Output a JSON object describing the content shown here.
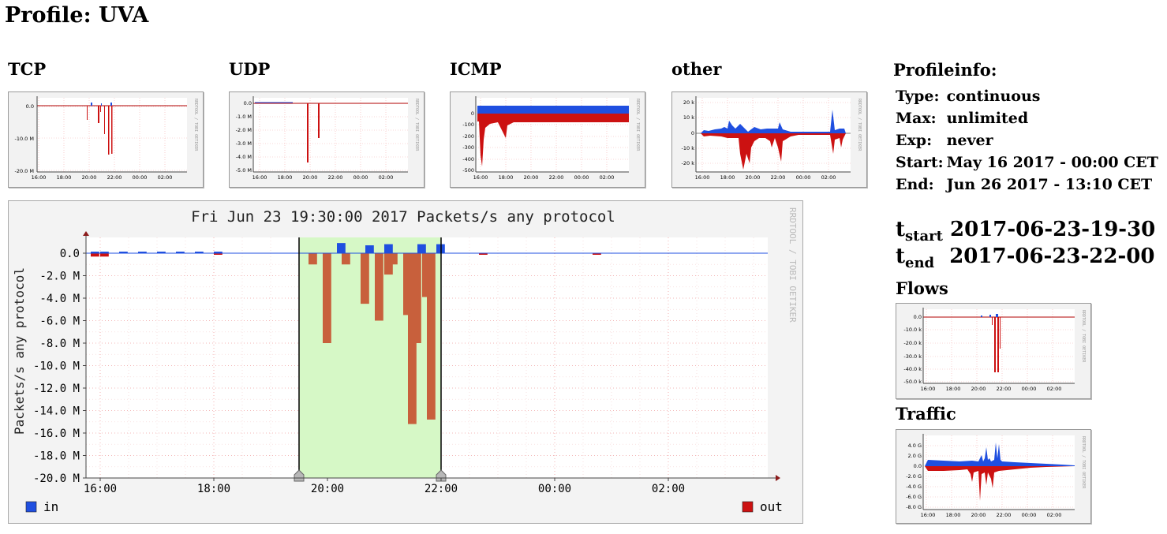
{
  "page": {
    "title": "Profile: UVA"
  },
  "thumbnails": [
    {
      "id": "tcp",
      "label": "TCP",
      "yticks": [
        "0.0",
        "-10.0 M",
        "-20.0 M"
      ],
      "xticks": [
        "16:00",
        "18:00",
        "20:00",
        "22:00",
        "00:00",
        "02:00"
      ],
      "watermark": "RRDTOOL / TOBI OETIKER"
    },
    {
      "id": "udp",
      "label": "UDP",
      "yticks": [
        "0.0",
        "-1.0 M",
        "-2.0 M",
        "-3.0 M",
        "-4.0 M",
        "-5.0 M"
      ],
      "xticks": [
        "16:00",
        "18:00",
        "20:00",
        "22:00",
        "00:00",
        "02:00"
      ],
      "watermark": "RRDTOOL / TOBI OETIKER"
    },
    {
      "id": "icmp",
      "label": "ICMP",
      "yticks": [
        "0",
        "-100",
        "-200",
        "-300",
        "-400",
        "-500"
      ],
      "xticks": [
        "16:00",
        "18:00",
        "20:00",
        "22:00",
        "00:00",
        "02:00"
      ],
      "watermark": "RRDTOOL / TOBI OETIKER"
    },
    {
      "id": "other",
      "label": "other",
      "yticks": [
        "20 k",
        "10 k",
        "0",
        "-10 k",
        "-20 k"
      ],
      "xticks": [
        "16:00",
        "18:00",
        "20:00",
        "22:00",
        "00:00",
        "02:00"
      ],
      "watermark": "RRDTOOL / TOBI OETIKER"
    }
  ],
  "main_chart": {
    "title": "Fri Jun 23 19:30:00 2017 Packets/s any protocol",
    "ylabel": "Packets/s any protocol",
    "watermark": "RRDTOOL / TOBI OETIKER",
    "yticks": [
      "0.0",
      "-2.0 M",
      "-4.0 M",
      "-6.0 M",
      "-8.0 M",
      "-10.0 M",
      "-12.0 M",
      "-14.0 M",
      "-16.0 M",
      "-18.0 M",
      "-20.0 M"
    ],
    "xticks": [
      "16:00",
      "18:00",
      "20:00",
      "22:00",
      "00:00",
      "02:00"
    ],
    "legend": [
      {
        "name": "in",
        "color": "#1f4fe0"
      },
      {
        "name": "out",
        "color": "#cc1111"
      }
    ],
    "selection": {
      "start": "19:30",
      "end": "22:00"
    }
  },
  "chart_data": {
    "type": "bar",
    "title": "Fri Jun 23 19:30:00 2017 Packets/s any protocol",
    "ylabel": "Packets/s any protocol",
    "ylim": [
      -20.0,
      0.5
    ],
    "xlim": [
      "15:45",
      "03:45"
    ],
    "series": [
      {
        "name": "in",
        "color": "#1f4fe0",
        "points": [
          [
            "15:50",
            0.1
          ],
          [
            "16:00",
            0.1
          ],
          [
            "16:20",
            0.1
          ],
          [
            "16:40",
            0.1
          ],
          [
            "17:00",
            0.05
          ],
          [
            "17:20",
            0.05
          ],
          [
            "17:40",
            0.05
          ],
          [
            "18:00",
            0.05
          ],
          [
            "20:10",
            0.9
          ],
          [
            "20:40",
            0.7
          ],
          [
            "21:00",
            0.8
          ],
          [
            "21:35",
            0.8
          ],
          [
            "21:55",
            0.8
          ]
        ]
      },
      {
        "name": "out",
        "color": "#cc1111",
        "points": [
          [
            "15:50",
            -0.3
          ],
          [
            "16:00",
            -0.3
          ],
          [
            "18:00",
            -0.1
          ],
          [
            "19:40",
            -1.0
          ],
          [
            "19:55",
            -8.0
          ],
          [
            "20:15",
            -1.0
          ],
          [
            "20:35",
            -4.5
          ],
          [
            "20:50",
            -6.0
          ],
          [
            "21:00",
            -1.9
          ],
          [
            "21:05",
            -1.0
          ],
          [
            "21:20",
            -5.5
          ],
          [
            "21:25",
            -15.2
          ],
          [
            "21:30",
            -8.0
          ],
          [
            "21:40",
            -3.9
          ],
          [
            "21:45",
            -14.8
          ],
          [
            "22:40",
            -0.1
          ],
          [
            "00:40",
            -0.1
          ]
        ]
      }
    ]
  },
  "profile_info": {
    "heading": "Profileinfo:",
    "rows": [
      {
        "key": "Type:",
        "value": "continuous"
      },
      {
        "key": "Max:",
        "value": "unlimited"
      },
      {
        "key": "Exp:",
        "value": "never"
      },
      {
        "key": "Start:",
        "value": "May 16 2017 - 00:00 CET"
      },
      {
        "key": "End:",
        "value": "Jun 26 2017 - 13:10 CET"
      }
    ]
  },
  "time_window": {
    "t_start_label": "t",
    "t_start_sub": "start",
    "t_start_value": "2017-06-23-19-30",
    "t_end_label": "t",
    "t_end_sub": "end",
    "t_end_value": "2017-06-23-22-00"
  },
  "side_graphs": {
    "flows": {
      "label": "Flows",
      "yticks": [
        "0.0",
        "-10.0 k",
        "-20.0 k",
        "-30.0 k",
        "-40.0 k",
        "-50.0 k"
      ],
      "xticks": [
        "16:00",
        "18:00",
        "20:00",
        "22:00",
        "00:00",
        "02:00"
      ],
      "watermark": "RRDTOOL / TOBI OETIKER"
    },
    "traffic": {
      "label": "Traffic",
      "yticks": [
        "4.0 G",
        "2.0 G",
        "0.0",
        "-2.0 G",
        "-4.0 G",
        "-6.0 G",
        "-8.0 G"
      ],
      "xticks": [
        "16:00",
        "18:00",
        "20:00",
        "22:00",
        "00:00",
        "02:00"
      ],
      "watermark": "RRDTOOL / TOBI OETIKER"
    }
  }
}
